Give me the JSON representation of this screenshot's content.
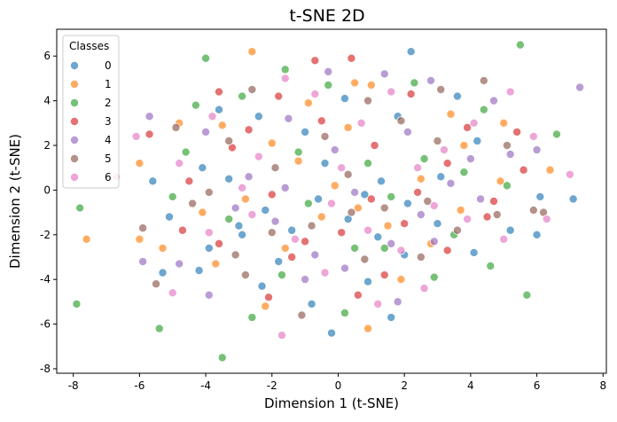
{
  "chart_data": {
    "type": "scatter",
    "title": "t-SNE 2D",
    "xlabel": "Dimension 1 (t-SNE)",
    "ylabel": "Dimension 2 (t-SNE)",
    "xlim": [
      -8.5,
      8.1
    ],
    "ylim": [
      -8.2,
      7.2
    ],
    "xticks": [
      -8,
      -6,
      -4,
      -2,
      0,
      2,
      4,
      6,
      8
    ],
    "yticks": [
      -8,
      -6,
      -4,
      -2,
      0,
      2,
      4,
      6
    ],
    "grid": false,
    "legend": {
      "title": "Classes",
      "placement": "top-left"
    },
    "colors": [
      "#1f77b4",
      "#ff7f0e",
      "#2ca02c",
      "#d62728",
      "#9467bd",
      "#8c564b",
      "#e377c2"
    ],
    "series": [
      {
        "name": "0",
        "points": [
          [
            -5.1,
            -1.2
          ],
          [
            -3.9,
            -2.6
          ],
          [
            -3.0,
            -1.6
          ],
          [
            -2.2,
            -0.9
          ],
          [
            -1.4,
            -1.8
          ],
          [
            -0.6,
            -0.4
          ],
          [
            0.3,
            -1.3
          ],
          [
            1.2,
            -2.1
          ],
          [
            2.1,
            -0.6
          ],
          [
            3.0,
            -1.5
          ],
          [
            4.1,
            -2.8
          ],
          [
            5.2,
            -1.8
          ],
          [
            6.1,
            -0.3
          ],
          [
            7.1,
            -0.4
          ],
          [
            6.0,
            -2.0
          ],
          [
            4.2,
            2.2
          ],
          [
            1.8,
            3.3
          ],
          [
            0.2,
            4.1
          ],
          [
            -1.0,
            2.6
          ],
          [
            -2.4,
            3.3
          ],
          [
            -4.1,
            1.0
          ],
          [
            -5.6,
            0.4
          ],
          [
            -4.2,
            -3.6
          ],
          [
            -2.3,
            -4.3
          ],
          [
            -0.8,
            -5.1
          ],
          [
            0.9,
            -4.1
          ],
          [
            2.0,
            -2.9
          ],
          [
            3.1,
            0.6
          ],
          [
            -3.3,
            0.5
          ],
          [
            -0.4,
            1.2
          ],
          [
            1.3,
            0.4
          ],
          [
            -1.8,
            -3.2
          ],
          [
            -5.3,
            -3.7
          ],
          [
            2.2,
            6.2
          ],
          [
            -3.6,
            3.6
          ],
          [
            3.6,
            4.2
          ],
          [
            -0.2,
            -6.4
          ],
          [
            1.6,
            -5.7
          ],
          [
            -2.9,
            -2.0
          ],
          [
            0.8,
            -0.2
          ]
        ]
      },
      {
        "name": "1",
        "points": [
          [
            -7.6,
            -2.2
          ],
          [
            -5.3,
            -2.6
          ],
          [
            -4.1,
            -1.0
          ],
          [
            -2.8,
            -0.4
          ],
          [
            -1.6,
            -2.6
          ],
          [
            -0.5,
            -1.2
          ],
          [
            0.6,
            -0.8
          ],
          [
            1.5,
            -1.6
          ],
          [
            2.8,
            -2.4
          ],
          [
            3.7,
            -0.9
          ],
          [
            4.9,
            0.4
          ],
          [
            6.4,
            0.9
          ],
          [
            5.0,
            3.0
          ],
          [
            3.4,
            3.4
          ],
          [
            1.0,
            4.7
          ],
          [
            0.3,
            2.8
          ],
          [
            -0.9,
            3.9
          ],
          [
            -2.6,
            6.2
          ],
          [
            -2.0,
            2.1
          ],
          [
            -3.5,
            2.9
          ],
          [
            -4.8,
            3.0
          ],
          [
            -6.0,
            1.2
          ],
          [
            -6.0,
            -2.2
          ],
          [
            -3.7,
            -3.3
          ],
          [
            -2.2,
            -5.2
          ],
          [
            0.9,
            -6.2
          ],
          [
            1.9,
            -4.0
          ],
          [
            2.5,
            0.5
          ],
          [
            -0.1,
            0.2
          ],
          [
            -1.2,
            1.3
          ],
          [
            3.8,
            2.0
          ],
          [
            0.5,
            4.8
          ]
        ]
      },
      {
        "name": "2",
        "points": [
          [
            -7.9,
            -5.1
          ],
          [
            -7.8,
            -0.8
          ],
          [
            -5.4,
            -6.2
          ],
          [
            -4.0,
            5.9
          ],
          [
            -3.5,
            -7.5
          ],
          [
            5.5,
            6.5
          ],
          [
            5.7,
            -4.7
          ],
          [
            -4.6,
            1.7
          ],
          [
            -3.3,
            -1.3
          ],
          [
            -1.7,
            -3.8
          ],
          [
            -0.9,
            -0.6
          ],
          [
            0.5,
            -2.6
          ],
          [
            1.6,
            -0.3
          ],
          [
            2.6,
            1.4
          ],
          [
            3.5,
            -2.0
          ],
          [
            4.6,
            -3.4
          ],
          [
            5.1,
            0.2
          ],
          [
            6.6,
            2.5
          ],
          [
            4.4,
            3.6
          ],
          [
            2.3,
            4.8
          ],
          [
            -0.3,
            4.7
          ],
          [
            -1.6,
            5.4
          ],
          [
            -2.9,
            4.2
          ],
          [
            -4.3,
            3.8
          ],
          [
            -5.0,
            -0.3
          ],
          [
            -2.6,
            -5.7
          ],
          [
            0.2,
            -5.5
          ],
          [
            1.4,
            -2.6
          ],
          [
            2.9,
            -3.9
          ],
          [
            -1.2,
            1.7
          ],
          [
            0.9,
            1.2
          ],
          [
            3.8,
            0.8
          ]
        ]
      },
      {
        "name": "3",
        "points": [
          [
            -5.7,
            2.5
          ],
          [
            -4.5,
            0.4
          ],
          [
            -3.6,
            4.4
          ],
          [
            -2.0,
            -0.2
          ],
          [
            -1.0,
            -2.3
          ],
          [
            0.1,
            -1.9
          ],
          [
            1.0,
            -0.4
          ],
          [
            2.0,
            -1.5
          ],
          [
            3.3,
            -2.7
          ],
          [
            4.5,
            -1.2
          ],
          [
            5.6,
            0.9
          ],
          [
            5.4,
            2.6
          ],
          [
            3.9,
            2.8
          ],
          [
            2.2,
            4.3
          ],
          [
            0.4,
            5.9
          ],
          [
            -0.5,
            3.1
          ],
          [
            -1.8,
            4.2
          ],
          [
            -3.2,
            1.9
          ],
          [
            -4.7,
            -1.8
          ],
          [
            -3.6,
            -2.4
          ],
          [
            -2.1,
            -4.8
          ],
          [
            -1.4,
            -3.0
          ],
          [
            0.6,
            -4.7
          ],
          [
            1.4,
            -3.8
          ],
          [
            2.4,
            -0.1
          ],
          [
            -0.7,
            5.8
          ],
          [
            1.1,
            2.0
          ],
          [
            -2.7,
            2.7
          ],
          [
            3.3,
            1.2
          ],
          [
            4.7,
            -0.5
          ]
        ]
      },
      {
        "name": "4",
        "points": [
          [
            7.3,
            4.6
          ],
          [
            -5.7,
            3.3
          ],
          [
            -4.8,
            -3.3
          ],
          [
            -3.1,
            -0.8
          ],
          [
            -1.9,
            -1.4
          ],
          [
            -0.7,
            -2.9
          ],
          [
            0.5,
            -0.1
          ],
          [
            1.6,
            -2.4
          ],
          [
            2.5,
            -1.1
          ],
          [
            3.4,
            0.3
          ],
          [
            4.3,
            -0.4
          ],
          [
            5.2,
            1.6
          ],
          [
            6.0,
            1.8
          ],
          [
            4.7,
            4.0
          ],
          [
            2.8,
            4.9
          ],
          [
            1.4,
            5.2
          ],
          [
            -0.3,
            5.3
          ],
          [
            -1.5,
            3.2
          ],
          [
            -2.7,
            0.6
          ],
          [
            -4.0,
            2.6
          ],
          [
            -5.9,
            -3.2
          ],
          [
            -3.9,
            -4.7
          ],
          [
            -1.0,
            -4.0
          ],
          [
            0.2,
            -3.5
          ],
          [
            1.8,
            -5.0
          ],
          [
            2.9,
            -2.3
          ],
          [
            -0.1,
            1.8
          ],
          [
            2.1,
            2.6
          ],
          [
            4.0,
            1.4
          ],
          [
            -1.6,
            0.1
          ]
        ]
      },
      {
        "name": "5",
        "points": [
          [
            -5.9,
            -1.7
          ],
          [
            -4.4,
            -0.6
          ],
          [
            -3.1,
            -2.9
          ],
          [
            -2.0,
            -1.9
          ],
          [
            -0.8,
            -1.6
          ],
          [
            0.4,
            -1.0
          ],
          [
            1.4,
            -0.8
          ],
          [
            2.5,
            -3.0
          ],
          [
            3.6,
            -1.8
          ],
          [
            4.8,
            -1.1
          ],
          [
            5.9,
            -0.9
          ],
          [
            6.2,
            -1.0
          ],
          [
            4.4,
            4.9
          ],
          [
            3.1,
            4.5
          ],
          [
            1.9,
            3.1
          ],
          [
            0.9,
            4.0
          ],
          [
            -0.4,
            2.4
          ],
          [
            -2.6,
            4.5
          ],
          [
            -3.3,
            2.2
          ],
          [
            -4.9,
            2.8
          ],
          [
            -5.5,
            -4.2
          ],
          [
            -2.8,
            -3.8
          ],
          [
            -1.1,
            -5.6
          ],
          [
            0.8,
            -3.1
          ],
          [
            2.7,
            -0.5
          ],
          [
            -1.9,
            1.0
          ],
          [
            0.3,
            0.7
          ],
          [
            3.0,
            2.2
          ],
          [
            5.1,
            2.0
          ],
          [
            -3.9,
            -0.1
          ]
        ]
      },
      {
        "name": "6",
        "points": [
          [
            -6.7,
            0.6
          ],
          [
            -6.1,
            2.4
          ],
          [
            -5.0,
            -4.6
          ],
          [
            -3.9,
            -1.9
          ],
          [
            -2.6,
            -1.1
          ],
          [
            -1.3,
            -2.2
          ],
          [
            -0.2,
            -0.6
          ],
          [
            0.9,
            -1.8
          ],
          [
            1.9,
            -2.7
          ],
          [
            2.9,
            -0.7
          ],
          [
            3.9,
            -1.3
          ],
          [
            5.0,
            -2.2
          ],
          [
            6.3,
            -1.3
          ],
          [
            7.0,
            0.7
          ],
          [
            5.9,
            2.4
          ],
          [
            5.2,
            4.4
          ],
          [
            4.1,
            3.0
          ],
          [
            3.2,
            1.8
          ],
          [
            1.6,
            4.4
          ],
          [
            0.7,
            3.0
          ],
          [
            -0.7,
            4.3
          ],
          [
            -1.6,
            5.0
          ],
          [
            -2.4,
            1.5
          ],
          [
            -3.8,
            3.3
          ],
          [
            -4.8,
            1.2
          ],
          [
            -1.7,
            -6.5
          ],
          [
            -0.4,
            -3.7
          ],
          [
            1.2,
            -5.1
          ],
          [
            2.6,
            -4.4
          ],
          [
            -2.9,
            0.1
          ],
          [
            0.1,
            1.0
          ],
          [
            2.4,
            1.0
          ]
        ]
      }
    ]
  }
}
